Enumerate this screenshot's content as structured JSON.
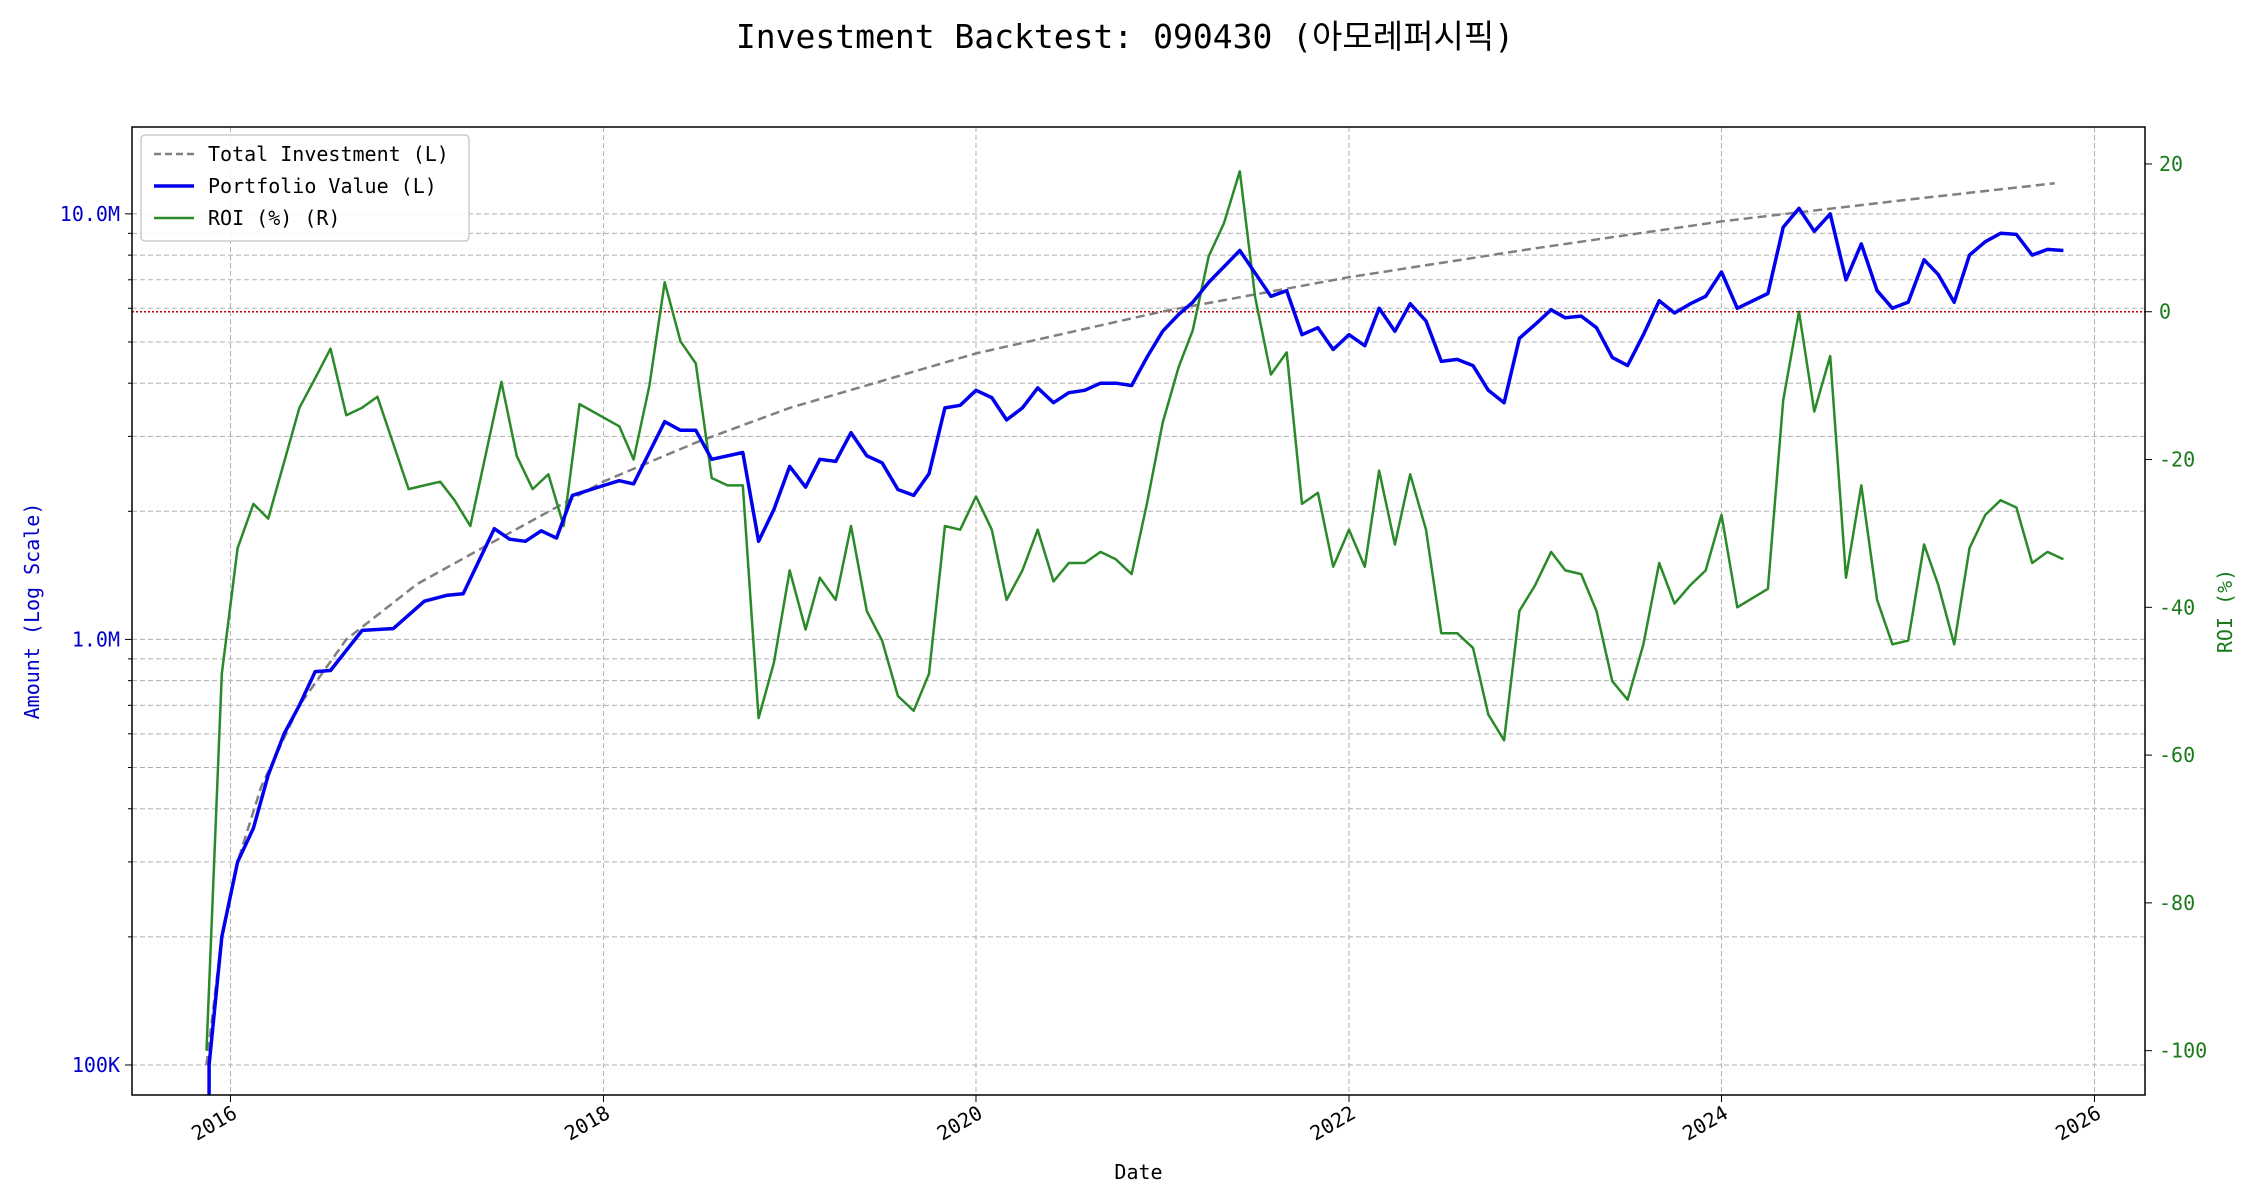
{
  "chart_data": {
    "type": "line",
    "title": "Investment Backtest: 090430 (아모레퍼시픽)",
    "xlabel": "Date",
    "ylabel_left": "Amount (Log Scale)",
    "ylabel_right": "ROI (%)",
    "y_left_scale": "log",
    "y_left_range": [
      85000,
      16000000
    ],
    "y_left_ticks": [
      {
        "value": 100000,
        "label": "100K"
      },
      {
        "value": 1000000,
        "label": "1.0M"
      },
      {
        "value": 10000000,
        "label": "10.0M"
      }
    ],
    "y_right_range": [
      -106,
      25
    ],
    "y_right_ticks": [
      20,
      0,
      -20,
      -40,
      -60,
      -80,
      -100
    ],
    "x_range": [
      "2015-06-22",
      "2026-04-10"
    ],
    "x_ticks": [
      "2016",
      "2018",
      "2020",
      "2022",
      "2024",
      "2026"
    ],
    "grid": true,
    "legend_position": "top-left",
    "reference_line": {
      "axis": "right",
      "value": 0,
      "style": "dotted",
      "color": "#c00000"
    },
    "colors": {
      "total_investment": "#808080",
      "portfolio": "#0000ee",
      "roi": "#2a8a2a",
      "left_axis": "#0000cc",
      "right_axis": "#1a7a1a"
    },
    "series": [
      {
        "name": "Total Investment (L)",
        "axis": "left",
        "style": "dashed",
        "points": [
          [
            "2015-11-15",
            100000
          ],
          [
            "2015-12-15",
            200000
          ],
          [
            "2016-01-15",
            300000
          ],
          [
            "2016-03-01",
            450000
          ],
          [
            "2016-05-15",
            700000
          ],
          [
            "2016-08-15",
            1000000
          ],
          [
            "2017-01-01",
            1350000
          ],
          [
            "2017-06-01",
            1700000
          ],
          [
            "2018-01-01",
            2350000
          ],
          [
            "2018-07-01",
            2900000
          ],
          [
            "2019-01-01",
            3500000
          ],
          [
            "2020-01-01",
            4700000
          ],
          [
            "2021-01-01",
            5900000
          ],
          [
            "2022-01-01",
            7100000
          ],
          [
            "2023-01-01",
            8300000
          ],
          [
            "2024-01-01",
            9600000
          ],
          [
            "2025-01-01",
            10800000
          ],
          [
            "2025-10-15",
            11800000
          ]
        ]
      },
      {
        "name": "Portfolio Value (L)",
        "axis": "left",
        "style": "solid",
        "points": [
          [
            "2015-11-20",
            80000
          ],
          [
            "2015-11-20",
            100000
          ],
          [
            "2015-12-15",
            200000
          ],
          [
            "2016-01-15",
            300000
          ],
          [
            "2016-02-15",
            360000
          ],
          [
            "2016-03-15",
            480000
          ],
          [
            "2016-04-15",
            600000
          ],
          [
            "2016-05-15",
            700000
          ],
          [
            "2016-06-15",
            840000
          ],
          [
            "2016-07-15",
            845000
          ],
          [
            "2016-09-15",
            1050000
          ],
          [
            "2016-11-15",
            1060000
          ],
          [
            "2017-01-15",
            1230000
          ],
          [
            "2017-03-01",
            1270000
          ],
          [
            "2017-04-01",
            1280000
          ],
          [
            "2017-06-01",
            1820000
          ],
          [
            "2017-07-01",
            1720000
          ],
          [
            "2017-08-01",
            1700000
          ],
          [
            "2017-09-01",
            1800000
          ],
          [
            "2017-10-01",
            1730000
          ],
          [
            "2017-11-01",
            2180000
          ],
          [
            "2018-01-01",
            2300000
          ],
          [
            "2018-02-01",
            2360000
          ],
          [
            "2018-03-01",
            2320000
          ],
          [
            "2018-05-01",
            3250000
          ],
          [
            "2018-06-01",
            3100000
          ],
          [
            "2018-07-01",
            3100000
          ],
          [
            "2018-08-01",
            2650000
          ],
          [
            "2018-10-01",
            2750000
          ],
          [
            "2018-11-01",
            1700000
          ],
          [
            "2018-12-01",
            2020000
          ],
          [
            "2019-01-01",
            2550000
          ],
          [
            "2019-02-01",
            2280000
          ],
          [
            "2019-03-01",
            2650000
          ],
          [
            "2019-04-01",
            2620000
          ],
          [
            "2019-05-01",
            3060000
          ],
          [
            "2019-06-01",
            2700000
          ],
          [
            "2019-07-01",
            2600000
          ],
          [
            "2019-08-01",
            2250000
          ],
          [
            "2019-09-01",
            2180000
          ],
          [
            "2019-10-01",
            2450000
          ],
          [
            "2019-11-01",
            3500000
          ],
          [
            "2019-12-01",
            3550000
          ],
          [
            "2020-01-01",
            3850000
          ],
          [
            "2020-02-01",
            3700000
          ],
          [
            "2020-03-01",
            3280000
          ],
          [
            "2020-04-01",
            3500000
          ],
          [
            "2020-05-01",
            3900000
          ],
          [
            "2020-06-01",
            3600000
          ],
          [
            "2020-07-01",
            3800000
          ],
          [
            "2020-08-01",
            3850000
          ],
          [
            "2020-09-01",
            4000000
          ],
          [
            "2020-10-01",
            4000000
          ],
          [
            "2020-11-01",
            3950000
          ],
          [
            "2020-12-01",
            4600000
          ],
          [
            "2021-01-01",
            5300000
          ],
          [
            "2021-02-01",
            5800000
          ],
          [
            "2021-03-01",
            6200000
          ],
          [
            "2021-04-01",
            6900000
          ],
          [
            "2021-06-01",
            8200000
          ],
          [
            "2021-08-01",
            6400000
          ],
          [
            "2021-09-01",
            6600000
          ],
          [
            "2021-10-01",
            5200000
          ],
          [
            "2021-11-01",
            5400000
          ],
          [
            "2021-12-01",
            4800000
          ],
          [
            "2022-01-01",
            5200000
          ],
          [
            "2022-02-01",
            4900000
          ],
          [
            "2022-03-01",
            6000000
          ],
          [
            "2022-04-01",
            5300000
          ],
          [
            "2022-05-01",
            6150000
          ],
          [
            "2022-06-01",
            5600000
          ],
          [
            "2022-07-01",
            4500000
          ],
          [
            "2022-08-01",
            4550000
          ],
          [
            "2022-09-01",
            4400000
          ],
          [
            "2022-10-01",
            3850000
          ],
          [
            "2022-11-01",
            3600000
          ],
          [
            "2022-12-01",
            5100000
          ],
          [
            "2023-01-01",
            5500000
          ],
          [
            "2023-02-01",
            5950000
          ],
          [
            "2023-03-01",
            5700000
          ],
          [
            "2023-04-01",
            5750000
          ],
          [
            "2023-05-01",
            5400000
          ],
          [
            "2023-06-01",
            4600000
          ],
          [
            "2023-07-01",
            4400000
          ],
          [
            "2023-08-01",
            5200000
          ],
          [
            "2023-09-01",
            6250000
          ],
          [
            "2023-10-01",
            5850000
          ],
          [
            "2023-11-01",
            6150000
          ],
          [
            "2023-12-01",
            6400000
          ],
          [
            "2024-01-01",
            7300000
          ],
          [
            "2024-02-01",
            6000000
          ],
          [
            "2024-04-01",
            6500000
          ],
          [
            "2024-05-01",
            9300000
          ],
          [
            "2024-06-01",
            10300000
          ],
          [
            "2024-07-01",
            9100000
          ],
          [
            "2024-08-01",
            10000000
          ],
          [
            "2024-09-01",
            7000000
          ],
          [
            "2024-10-01",
            8500000
          ],
          [
            "2024-11-01",
            6600000
          ],
          [
            "2024-12-01",
            6000000
          ],
          [
            "2025-01-01",
            6200000
          ],
          [
            "2025-02-01",
            7800000
          ],
          [
            "2025-03-01",
            7200000
          ],
          [
            "2025-04-01",
            6200000
          ],
          [
            "2025-05-01",
            8000000
          ],
          [
            "2025-06-01",
            8600000
          ],
          [
            "2025-07-01",
            9000000
          ],
          [
            "2025-08-01",
            8950000
          ],
          [
            "2025-09-01",
            8000000
          ],
          [
            "2025-10-01",
            8250000
          ],
          [
            "2025-11-01",
            8200000
          ]
        ]
      },
      {
        "name": "ROI (%) (R)",
        "axis": "right",
        "style": "solid",
        "points": [
          [
            "2015-11-15",
            -100
          ],
          [
            "2015-12-15",
            -49
          ],
          [
            "2016-01-15",
            -32
          ],
          [
            "2016-02-15",
            -26
          ],
          [
            "2016-03-15",
            -28
          ],
          [
            "2016-05-15",
            -13
          ],
          [
            "2016-06-15",
            -9
          ],
          [
            "2016-07-15",
            -5
          ],
          [
            "2016-08-15",
            -14
          ],
          [
            "2016-09-15",
            -13
          ],
          [
            "2016-10-15",
            -11.5
          ],
          [
            "2016-12-15",
            -24
          ],
          [
            "2017-01-15",
            -23.5
          ],
          [
            "2017-02-15",
            -23
          ],
          [
            "2017-03-15",
            -25.5
          ],
          [
            "2017-04-15",
            -29
          ],
          [
            "2017-06-15",
            -9.5
          ],
          [
            "2017-07-15",
            -19.5
          ],
          [
            "2017-08-15",
            -24
          ],
          [
            "2017-09-15",
            -22
          ],
          [
            "2017-10-15",
            -29
          ],
          [
            "2017-11-15",
            -12.5
          ],
          [
            "2018-02-01",
            -15.5
          ],
          [
            "2018-03-01",
            -20
          ],
          [
            "2018-04-01",
            -10
          ],
          [
            "2018-05-01",
            4
          ],
          [
            "2018-06-01",
            -4
          ],
          [
            "2018-07-01",
            -7
          ],
          [
            "2018-08-01",
            -22.5
          ],
          [
            "2018-09-01",
            -23.5
          ],
          [
            "2018-10-01",
            -23.5
          ],
          [
            "2018-11-01",
            -55
          ],
          [
            "2018-12-01",
            -47.5
          ],
          [
            "2019-01-01",
            -35
          ],
          [
            "2019-02-01",
            -43
          ],
          [
            "2019-03-01",
            -36
          ],
          [
            "2019-04-01",
            -39
          ],
          [
            "2019-05-01",
            -29
          ],
          [
            "2019-06-01",
            -40.5
          ],
          [
            "2019-07-01",
            -44.5
          ],
          [
            "2019-08-01",
            -52
          ],
          [
            "2019-09-01",
            -54
          ],
          [
            "2019-10-01",
            -49
          ],
          [
            "2019-11-01",
            -29
          ],
          [
            "2019-12-01",
            -29.5
          ],
          [
            "2020-01-01",
            -25
          ],
          [
            "2020-02-01",
            -29.5
          ],
          [
            "2020-03-01",
            -39
          ],
          [
            "2020-04-01",
            -35
          ],
          [
            "2020-05-01",
            -29.5
          ],
          [
            "2020-06-01",
            -36.5
          ],
          [
            "2020-07-01",
            -34
          ],
          [
            "2020-08-01",
            -34
          ],
          [
            "2020-09-01",
            -32.5
          ],
          [
            "2020-10-01",
            -33.5
          ],
          [
            "2020-11-01",
            -35.5
          ],
          [
            "2020-12-01",
            -26
          ],
          [
            "2021-01-01",
            -15
          ],
          [
            "2021-02-01",
            -7.5
          ],
          [
            "2021-03-01",
            -2.5
          ],
          [
            "2021-04-01",
            7.5
          ],
          [
            "2021-05-01",
            12
          ],
          [
            "2021-06-01",
            19
          ],
          [
            "2021-07-01",
            2
          ],
          [
            "2021-08-01",
            -8.5
          ],
          [
            "2021-09-01",
            -5.5
          ],
          [
            "2021-10-01",
            -26
          ],
          [
            "2021-11-01",
            -24.5
          ],
          [
            "2021-12-01",
            -34.5
          ],
          [
            "2022-01-01",
            -29.5
          ],
          [
            "2022-02-01",
            -34.5
          ],
          [
            "2022-03-01",
            -21.5
          ],
          [
            "2022-04-01",
            -31.5
          ],
          [
            "2022-05-01",
            -22
          ],
          [
            "2022-06-01",
            -29.5
          ],
          [
            "2022-07-01",
            -43.5
          ],
          [
            "2022-08-01",
            -43.5
          ],
          [
            "2022-09-01",
            -45.5
          ],
          [
            "2022-10-01",
            -54.5
          ],
          [
            "2022-11-01",
            -58
          ],
          [
            "2022-12-01",
            -40.5
          ],
          [
            "2023-01-01",
            -37
          ],
          [
            "2023-02-01",
            -32.5
          ],
          [
            "2023-03-01",
            -35
          ],
          [
            "2023-04-01",
            -35.5
          ],
          [
            "2023-05-01",
            -40.5
          ],
          [
            "2023-06-01",
            -50
          ],
          [
            "2023-07-01",
            -52.5
          ],
          [
            "2023-08-01",
            -45
          ],
          [
            "2023-09-01",
            -34
          ],
          [
            "2023-10-01",
            -39.5
          ],
          [
            "2023-11-01",
            -37
          ],
          [
            "2023-12-01",
            -35
          ],
          [
            "2024-01-01",
            -27.5
          ],
          [
            "2024-02-01",
            -40
          ],
          [
            "2024-04-01",
            -37.5
          ],
          [
            "2024-05-01",
            -12
          ],
          [
            "2024-06-01",
            0
          ],
          [
            "2024-07-01",
            -13.5
          ],
          [
            "2024-08-01",
            -6
          ],
          [
            "2024-09-01",
            -36
          ],
          [
            "2024-10-01",
            -23.5
          ],
          [
            "2024-11-01",
            -39
          ],
          [
            "2024-12-01",
            -45
          ],
          [
            "2025-01-01",
            -44.5
          ],
          [
            "2025-02-01",
            -31.5
          ],
          [
            "2025-03-01",
            -37
          ],
          [
            "2025-04-01",
            -45
          ],
          [
            "2025-05-01",
            -32
          ],
          [
            "2025-06-01",
            -27.5
          ],
          [
            "2025-07-01",
            -25.5
          ],
          [
            "2025-08-01",
            -26.5
          ],
          [
            "2025-09-01",
            -34
          ],
          [
            "2025-10-01",
            -32.5
          ],
          [
            "2025-11-01",
            -33.5
          ]
        ]
      }
    ]
  }
}
